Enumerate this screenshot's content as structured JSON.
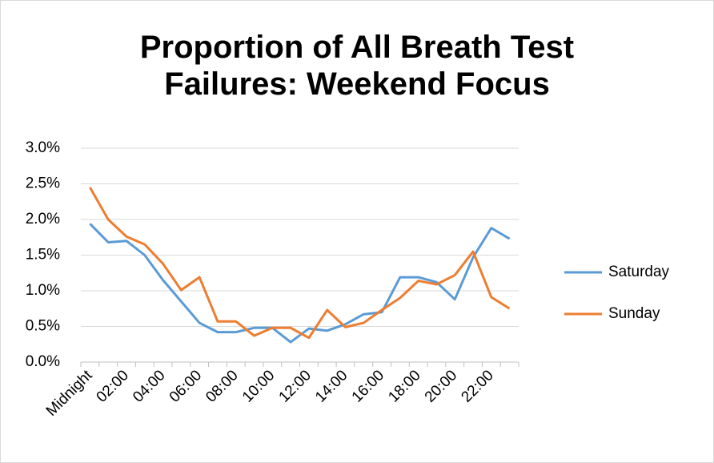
{
  "chart_data": {
    "type": "line",
    "title": "Proportion of All Breath Test Failures: Weekend Focus",
    "categories": [
      "Midnight",
      null,
      "02:00",
      null,
      "04:00",
      null,
      "06:00",
      null,
      "08:00",
      null,
      "10:00",
      null,
      "12:00",
      null,
      "14:00",
      null,
      "16:00",
      null,
      "18:00",
      null,
      "20:00",
      null,
      "22:00",
      null
    ],
    "series": [
      {
        "name": "Saturday",
        "color": "#5b9bd5",
        "values": [
          1.94,
          1.68,
          1.7,
          1.5,
          1.15,
          0.85,
          0.55,
          0.42,
          0.42,
          0.48,
          0.48,
          0.28,
          0.47,
          0.44,
          0.53,
          0.67,
          0.7,
          1.19,
          1.19,
          1.12,
          0.88,
          1.47,
          1.88,
          1.73
        ]
      },
      {
        "name": "Sunday",
        "color": "#ed7d31",
        "values": [
          2.45,
          2.0,
          1.76,
          1.65,
          1.38,
          1.01,
          1.19,
          0.57,
          0.57,
          0.37,
          0.48,
          0.48,
          0.34,
          0.73,
          0.49,
          0.55,
          0.73,
          0.9,
          1.14,
          1.09,
          1.22,
          1.55,
          0.91,
          0.75
        ]
      }
    ],
    "ylim": [
      0,
      3
    ],
    "yticks": [
      {
        "value": 0,
        "label": "0.0%"
      },
      {
        "value": 0.5,
        "label": "0.5%"
      },
      {
        "value": 1,
        "label": "1.0%"
      },
      {
        "value": 1.5,
        "label": "1.5%"
      },
      {
        "value": 2,
        "label": "2.0%"
      },
      {
        "value": 2.5,
        "label": "2.5%"
      },
      {
        "value": 3,
        "label": "3.0%"
      }
    ],
    "grid": true,
    "legend": "right"
  }
}
